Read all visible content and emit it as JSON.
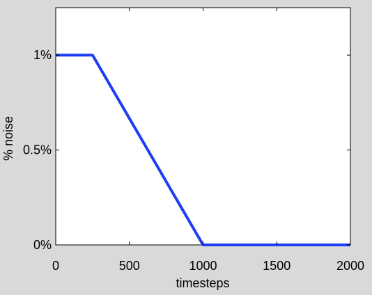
{
  "chart_data": {
    "type": "line",
    "title": "",
    "xlabel": "timesteps",
    "ylabel": "% noise",
    "xlim": [
      0,
      2000
    ],
    "ylim": [
      0,
      1.25
    ],
    "x_ticks": [
      0,
      500,
      1000,
      1500,
      2000
    ],
    "x_tick_labels": [
      "0",
      "500",
      "1000",
      "1500",
      "2000"
    ],
    "y_ticks": [
      0,
      0.5,
      1
    ],
    "y_tick_labels": [
      "0%",
      "0.5%",
      "1%"
    ],
    "grid": false,
    "series": [
      {
        "color": "#1f3df5",
        "x": [
          0,
          250,
          1000,
          2000
        ],
        "y": [
          1,
          1,
          0,
          0
        ]
      }
    ]
  }
}
